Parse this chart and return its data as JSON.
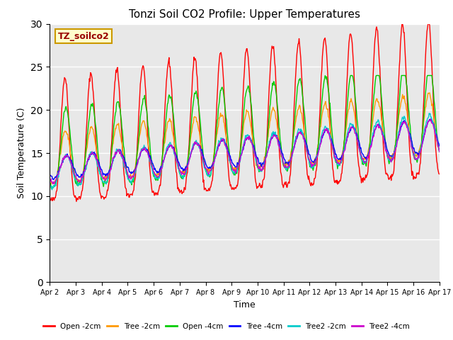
{
  "title": "Tonzi Soil CO2 Profile: Upper Temperatures",
  "xlabel": "Time",
  "ylabel": "Soil Temperature (C)",
  "ylim": [
    0,
    30
  ],
  "yticks": [
    0,
    5,
    10,
    15,
    20,
    25,
    30
  ],
  "legend_label": "TZ_soilco2",
  "series_labels": [
    "Open -2cm",
    "Tree -2cm",
    "Open -4cm",
    "Tree -4cm",
    "Tree2 -2cm",
    "Tree2 -4cm"
  ],
  "series_colors": [
    "#ff0000",
    "#ff9900",
    "#00cc00",
    "#0000ff",
    "#00cccc",
    "#cc00cc"
  ],
  "background_color": "#e8e8e8",
  "xtick_labels": [
    "Apr 2",
    "Apr 3",
    "Apr 4",
    "Apr 5",
    "Apr 6",
    "Apr 7",
    "Apr 8",
    "Apr 9",
    "Apr 10",
    "Apr 11",
    "Apr 12",
    "Apr 13",
    "Apr 14",
    "Apr 15",
    "Apr 16",
    "Apr 17"
  ],
  "figsize": [
    6.4,
    4.8
  ],
  "dpi": 100
}
